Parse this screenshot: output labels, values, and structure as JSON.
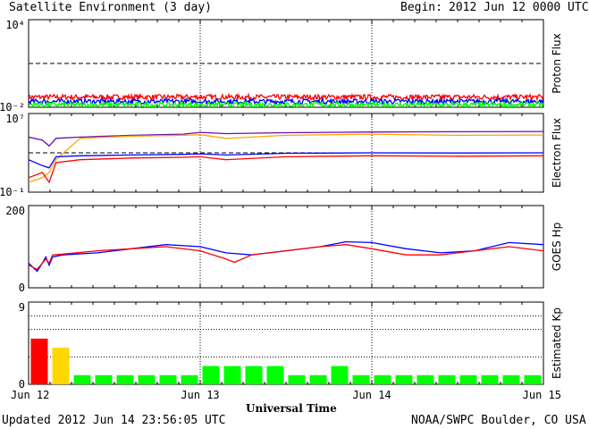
{
  "header": {
    "title": "Satellite Environment (3 day)",
    "begin_label": "Begin:",
    "begin_value": "2012 Jun 12 0000 UTC"
  },
  "footer": {
    "updated": "Updated 2012 Jun 14 23:56:05 UTC",
    "credit": "NOAA/SWPC Boulder, CO USA",
    "xlabel": "Universal Time"
  },
  "x_ticks": [
    "Jun 12",
    "Jun 13",
    "Jun 14",
    "Jun 15"
  ],
  "colors": {
    "red": "#ff0000",
    "blue": "#0000ff",
    "green": "#00ff00",
    "purple": "#6a0dad",
    "orange": "#ffa500",
    "yellow": "#ffd700"
  },
  "chart_data": [
    {
      "type": "line",
      "ylabel": "Proton Flux",
      "yscale": "log",
      "yticks": [
        "10⁴",
        "10⁻²"
      ],
      "ylim": [
        0.01,
        10000
      ],
      "x_unit": "days since Jun 12 0000 UTC",
      "xlim": [
        0,
        3
      ],
      "threshold": 10,
      "series": [
        {
          "color": "red",
          "level": 0.05
        },
        {
          "color": "blue",
          "level": 0.025
        },
        {
          "color": "green",
          "level": 0.015
        }
      ]
    },
    {
      "type": "line",
      "ylabel": "Electron Flux",
      "yscale": "log",
      "yticks": [
        "10⁷",
        "10⁻¹"
      ],
      "ylim": [
        0.1,
        10000000
      ],
      "xlim": [
        0,
        3
      ],
      "threshold": 1000,
      "series": [
        {
          "color": "purple",
          "x": [
            0,
            0.08,
            0.12,
            0.16,
            0.3,
            0.6,
            0.9,
            1.0,
            1.15,
            1.5,
            2.0,
            2.5,
            3.0
          ],
          "y": [
            40000,
            20000,
            5000,
            30000,
            40000,
            60000,
            80000,
            120000,
            90000,
            110000,
            130000,
            140000,
            150000
          ]
        },
        {
          "color": "orange",
          "x": [
            0,
            0.08,
            0.12,
            0.16,
            0.3,
            0.6,
            0.9,
            1.0,
            1.15,
            1.5,
            2.0,
            2.5,
            3.0
          ],
          "y": [
            1,
            3,
            10,
            200,
            30000,
            50000,
            60000,
            70000,
            30000,
            60000,
            80000,
            60000,
            65000
          ]
        },
        {
          "color": "red",
          "x": [
            0,
            0.08,
            0.12,
            0.16,
            0.3,
            0.6,
            0.9,
            1.0,
            1.15,
            1.5,
            2.0,
            2.5,
            3.0
          ],
          "y": [
            3,
            10,
            1,
            100,
            200,
            300,
            350,
            400,
            200,
            400,
            500,
            450,
            500
          ]
        },
        {
          "color": "blue",
          "x": [
            0,
            0.08,
            0.12,
            0.16,
            0.3,
            0.6,
            0.9,
            1.0,
            1.15,
            1.5,
            2.0,
            2.5,
            3.0
          ],
          "y": [
            200,
            50,
            30,
            400,
            500,
            600,
            700,
            800,
            600,
            900,
            1000,
            950,
            1000
          ]
        }
      ]
    },
    {
      "type": "line",
      "ylabel": "GOES Hp",
      "yticks": [
        "200",
        "0"
      ],
      "ylim": [
        0,
        200
      ],
      "xlim": [
        0,
        3
      ],
      "series": [
        {
          "color": "blue",
          "x": [
            0,
            0.05,
            0.08,
            0.1,
            0.12,
            0.14,
            0.2,
            0.4,
            0.6,
            0.8,
            1.0,
            1.15,
            1.3,
            1.5,
            1.7,
            1.85,
            2.0,
            2.2,
            2.4,
            2.6,
            2.8,
            3.0
          ],
          "y": [
            60,
            40,
            60,
            75,
            55,
            75,
            80,
            85,
            95,
            105,
            100,
            85,
            80,
            90,
            100,
            112,
            110,
            95,
            85,
            90,
            110,
            105
          ]
        },
        {
          "color": "red",
          "x": [
            0,
            0.05,
            0.08,
            0.1,
            0.12,
            0.14,
            0.2,
            0.4,
            0.6,
            0.8,
            1.0,
            1.15,
            1.2,
            1.3,
            1.5,
            1.7,
            1.85,
            2.0,
            2.2,
            2.4,
            2.6,
            2.8,
            3.0
          ],
          "y": [
            55,
            45,
            60,
            70,
            60,
            80,
            82,
            90,
            95,
            100,
            90,
            70,
            62,
            80,
            90,
            100,
            105,
            95,
            80,
            80,
            90,
            100,
            90
          ]
        }
      ]
    },
    {
      "type": "bar",
      "ylabel": "Estimated Kp",
      "yticks": [
        "9",
        "0"
      ],
      "ylim": [
        0,
        9
      ],
      "gridlines": [
        3,
        6,
        7.5
      ],
      "bar_width_hours": 3,
      "values": [
        5,
        4,
        1,
        1,
        1,
        1,
        1,
        1,
        2,
        2,
        2,
        2,
        1,
        1,
        2,
        1,
        1,
        1,
        1,
        1,
        1,
        1,
        1,
        1
      ],
      "colors": [
        "red",
        "yellow",
        "green",
        "green",
        "green",
        "green",
        "green",
        "green",
        "green",
        "green",
        "green",
        "green",
        "green",
        "green",
        "green",
        "green",
        "green",
        "green",
        "green",
        "green",
        "green",
        "green",
        "green",
        "green"
      ]
    }
  ]
}
